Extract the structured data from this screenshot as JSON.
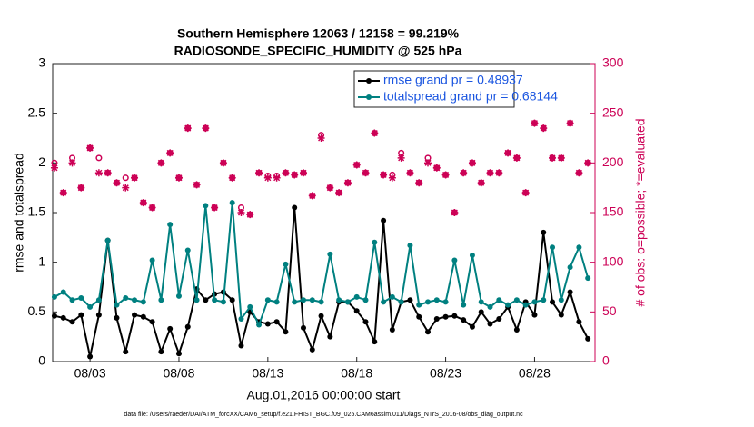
{
  "chart_data": {
    "type": "line",
    "title": "Southern Hemisphere 12063 / 12158 = 99.219%",
    "subtitle": "RADIOSONDE_SPECIFIC_HUMIDITY @ 525 hPa",
    "xlabel": "Aug.01,2016 00:00:00 start",
    "ylabel": "rmse and totalspread",
    "y2label": "# of obs: o=possible; *=evaluated",
    "footnote": "data file: /Users/raeder/DAI/ATM_forcXX/CAM6_setup/f.e21.FHIST_BGC.f09_025.CAM6assim.011/Diags_NTrS_2016-08/obs_diag_output.nc",
    "x": [
      0,
      0.5,
      1,
      1.5,
      2,
      2.5,
      3,
      3.5,
      4,
      4.5,
      5,
      5.5,
      6,
      6.5,
      7,
      7.5,
      8,
      8.5,
      9,
      9.5,
      10,
      10.5,
      11,
      11.5,
      12,
      12.5,
      13,
      13.5,
      14,
      14.5,
      15,
      15.5,
      16,
      16.5,
      17,
      17.5,
      18,
      18.5,
      19,
      19.5,
      20,
      20.5,
      21,
      21.5,
      22,
      22.5,
      23,
      23.5,
      24,
      24.5,
      25,
      25.5,
      26,
      26.5,
      27,
      27.5,
      28,
      28.5,
      29,
      29.5,
      30
    ],
    "xlim": [
      -0.1,
      30.4
    ],
    "xticks": [
      {
        "value": 2,
        "label": "08/03"
      },
      {
        "value": 7,
        "label": "08/08"
      },
      {
        "value": 12,
        "label": "08/13"
      },
      {
        "value": 17,
        "label": "08/18"
      },
      {
        "value": 22,
        "label": "08/23"
      },
      {
        "value": 27,
        "label": "08/28"
      }
    ],
    "ylim": [
      0,
      3
    ],
    "yticks": [
      0,
      0.5,
      1,
      1.5,
      2,
      2.5,
      3
    ],
    "y2lim": [
      0,
      300
    ],
    "y2ticks": [
      0,
      50,
      100,
      150,
      200,
      250,
      300
    ],
    "legend": "upper right",
    "series": [
      {
        "name": "rmse grand pr = 0.48937",
        "color": "#000000",
        "marker": "o",
        "axis": "y",
        "values": [
          0.46,
          0.44,
          0.4,
          0.47,
          0.05,
          0.47,
          1.22,
          0.44,
          0.1,
          0.47,
          0.45,
          0.4,
          0.1,
          0.33,
          0.08,
          0.35,
          0.73,
          0.62,
          0.68,
          0.7,
          0.62,
          0.16,
          0.5,
          0.4,
          0.38,
          0.4,
          0.3,
          1.55,
          0.34,
          0.12,
          0.46,
          0.25,
          0.6,
          0.6,
          0.51,
          0.4,
          0.2,
          1.42,
          0.32,
          0.6,
          0.62,
          0.45,
          0.3,
          0.43,
          0.45,
          0.46,
          0.42,
          0.35,
          0.5,
          0.38,
          0.43,
          0.55,
          0.32,
          0.6,
          0.47,
          1.3,
          0.6,
          0.47,
          0.7,
          0.4,
          0.23
        ]
      },
      {
        "name": "totalspread grand pr = 0.68144",
        "color": "#008080",
        "marker": "o",
        "axis": "y",
        "values": [
          0.65,
          0.7,
          0.62,
          0.64,
          0.55,
          0.62,
          1.22,
          0.57,
          0.64,
          0.62,
          0.6,
          1.02,
          0.62,
          1.38,
          0.66,
          1.12,
          0.62,
          1.57,
          0.62,
          0.6,
          1.6,
          0.43,
          0.55,
          0.37,
          0.62,
          0.6,
          0.98,
          0.6,
          0.62,
          0.62,
          0.6,
          1.08,
          0.62,
          0.6,
          0.65,
          0.62,
          1.2,
          0.6,
          0.65,
          0.6,
          1.17,
          0.57,
          0.6,
          0.62,
          0.6,
          1.02,
          0.57,
          1.07,
          0.6,
          0.55,
          0.62,
          0.57,
          0.62,
          0.57,
          0.6,
          0.62,
          1.15,
          0.62,
          0.95,
          1.15,
          0.84
        ]
      },
      {
        "color": "#cc0055",
        "marker": "circle",
        "axis": "y2",
        "values": [
          200,
          170,
          205,
          175,
          215,
          205,
          190,
          180,
          185,
          185,
          160,
          155,
          200,
          210,
          185,
          235,
          178,
          235,
          155,
          200,
          185,
          155,
          148,
          190,
          187,
          187,
          190,
          188,
          190,
          167,
          228,
          175,
          170,
          180,
          198,
          190,
          230,
          188,
          188,
          210,
          190,
          180,
          205,
          195,
          188,
          150,
          190,
          200,
          180,
          190,
          190,
          210,
          205,
          170,
          240,
          235,
          205,
          205,
          240,
          190,
          200
        ]
      },
      {
        "color": "#cc0055",
        "marker": "star",
        "axis": "y2",
        "values": [
          195,
          170,
          200,
          175,
          215,
          190,
          190,
          180,
          175,
          185,
          160,
          155,
          200,
          210,
          185,
          235,
          178,
          235,
          155,
          200,
          185,
          150,
          148,
          190,
          185,
          185,
          190,
          188,
          190,
          167,
          225,
          175,
          170,
          180,
          198,
          190,
          230,
          188,
          185,
          205,
          190,
          180,
          200,
          195,
          188,
          150,
          190,
          200,
          180,
          190,
          190,
          210,
          205,
          170,
          240,
          235,
          205,
          205,
          240,
          190,
          200
        ]
      }
    ]
  }
}
